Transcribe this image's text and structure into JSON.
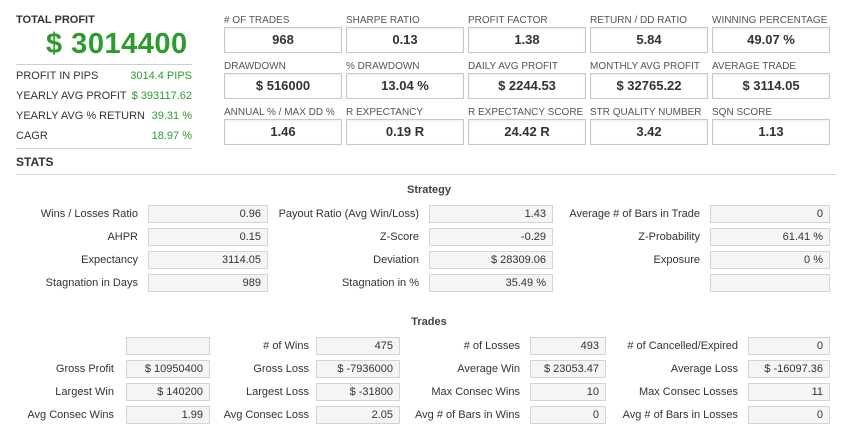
{
  "summary": {
    "total_profit_label": "TOTAL PROFIT",
    "total_profit_value": "$ 3014400",
    "rows": [
      {
        "label": "PROFIT IN PIPS",
        "value": "3014.4 PIPS"
      },
      {
        "label": "YEARLY AVG PROFIT",
        "value": "$ 393117.62"
      },
      {
        "label": "YEARLY AVG % RETURN",
        "value": "39.31 %"
      },
      {
        "label": "CAGR",
        "value": "18.97 %"
      }
    ]
  },
  "metrics": [
    {
      "label": "# OF TRADES",
      "value": "968"
    },
    {
      "label": "SHARPE RATIO",
      "value": "0.13"
    },
    {
      "label": "PROFIT FACTOR",
      "value": "1.38"
    },
    {
      "label": "RETURN / DD RATIO",
      "value": "5.84"
    },
    {
      "label": "WINNING PERCENTAGE",
      "value": "49.07 %"
    },
    {
      "label": "DRAWDOWN",
      "value": "$ 516000"
    },
    {
      "label": "% DRAWDOWN",
      "value": "13.04 %"
    },
    {
      "label": "DAILY AVG PROFIT",
      "value": "$ 2244.53"
    },
    {
      "label": "MONTHLY AVG PROFIT",
      "value": "$ 32765.22"
    },
    {
      "label": "AVERAGE TRADE",
      "value": "$ 3114.05"
    },
    {
      "label": "ANNUAL % / MAX DD %",
      "value": "1.46"
    },
    {
      "label": "R EXPECTANCY",
      "value": "0.19 R"
    },
    {
      "label": "R EXPECTANCY SCORE",
      "value": "24.42 R"
    },
    {
      "label": "STR QUALITY NUMBER",
      "value": "3.42"
    },
    {
      "label": "SQN SCORE",
      "value": "1.13"
    }
  ],
  "stats_title": "STATS",
  "strategy": {
    "title": "Strategy",
    "rows": [
      [
        {
          "label": "Wins / Losses Ratio",
          "value": "0.96"
        },
        {
          "label": "Payout Ratio (Avg Win/Loss)",
          "value": "1.43"
        },
        {
          "label": "Average # of Bars in Trade",
          "value": "0"
        }
      ],
      [
        {
          "label": "AHPR",
          "value": "0.15"
        },
        {
          "label": "Z-Score",
          "value": "-0.29"
        },
        {
          "label": "Z-Probability",
          "value": "61.41 %"
        }
      ],
      [
        {
          "label": "Expectancy",
          "value": "3114.05"
        },
        {
          "label": "Deviation",
          "value": "$ 28309.06"
        },
        {
          "label": "Exposure",
          "value": "0 %"
        }
      ],
      [
        {
          "label": "Stagnation in Days",
          "value": "989"
        },
        {
          "label": "Stagnation in %",
          "value": "35.49 %"
        },
        {
          "label": "",
          "value": ""
        }
      ]
    ]
  },
  "trades": {
    "title": "Trades",
    "rows": [
      [
        {
          "label": "",
          "value": ""
        },
        {
          "label": "# of Wins",
          "value": "475"
        },
        {
          "label": "# of Losses",
          "value": "493"
        },
        {
          "label": "# of Cancelled/Expired",
          "value": "0"
        }
      ],
      [
        {
          "label": "Gross Profit",
          "value": "$ 10950400"
        },
        {
          "label": "Gross Loss",
          "value": "$ -7936000"
        },
        {
          "label": "Average Win",
          "value": "$ 23053.47"
        },
        {
          "label": "Average Loss",
          "value": "$ -16097.36"
        }
      ],
      [
        {
          "label": "Largest Win",
          "value": "$ 140200"
        },
        {
          "label": "Largest Loss",
          "value": "$ -31800"
        },
        {
          "label": "Max Consec Wins",
          "value": "10"
        },
        {
          "label": "Max Consec Losses",
          "value": "11"
        }
      ],
      [
        {
          "label": "Avg Consec Wins",
          "value": "1.99"
        },
        {
          "label": "Avg Consec Loss",
          "value": "2.05"
        },
        {
          "label": "Avg # of Bars in Wins",
          "value": "0"
        },
        {
          "label": "Avg # of Bars in Losses",
          "value": "0"
        }
      ]
    ]
  }
}
